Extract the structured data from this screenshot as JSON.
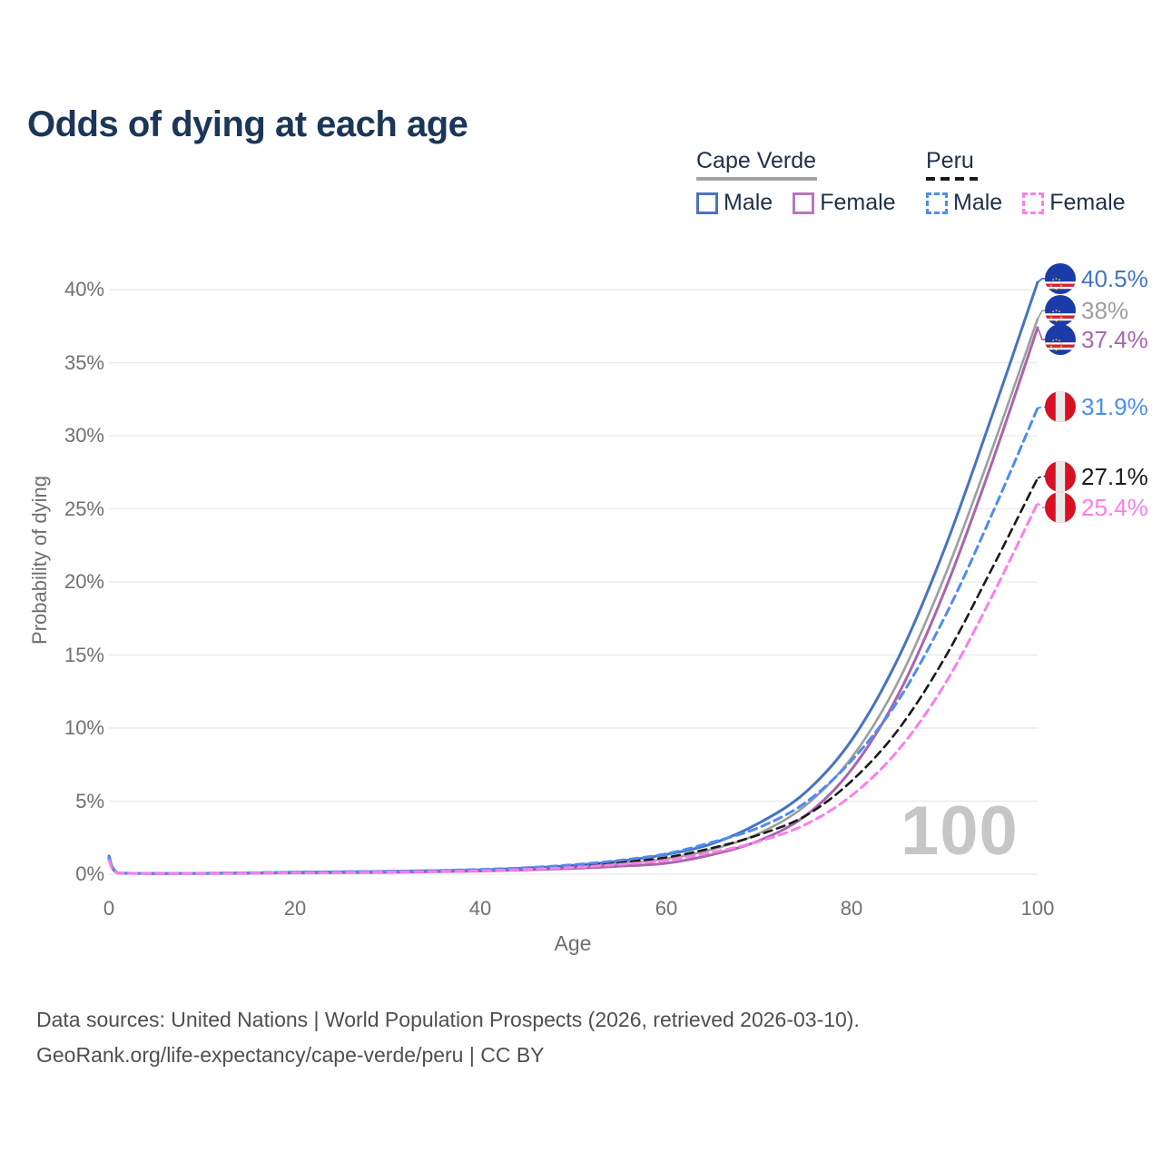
{
  "title": "Odds of dying at each age",
  "legend": {
    "groups": [
      {
        "name": "Cape Verde",
        "underline_style": "solid",
        "underline_color": "#a3a3a3",
        "items": [
          {
            "label": "Male",
            "color": "#4674c1",
            "line_style": "solid"
          },
          {
            "label": "Female",
            "color": "#bb74c0",
            "line_style": "solid"
          }
        ]
      },
      {
        "name": "Peru",
        "underline_style": "dashed",
        "underline_color": "#1a1a1a",
        "items": [
          {
            "label": "Male",
            "color": "#4e8cf0",
            "line_style": "dashed"
          },
          {
            "label": "Female",
            "color": "#fb7eeb",
            "line_style": "dashed"
          }
        ]
      }
    ]
  },
  "chart_data": {
    "type": "line",
    "title": "Odds of dying at each age",
    "xlabel": "Age",
    "ylabel": "Probability of dying",
    "x_ticks": [
      0,
      20,
      40,
      60,
      80,
      100
    ],
    "y_ticks": [
      {
        "value": 0,
        "label": "0%"
      },
      {
        "value": 5,
        "label": "5%"
      },
      {
        "value": 10,
        "label": "10%"
      },
      {
        "value": 15,
        "label": "15%"
      },
      {
        "value": 20,
        "label": "20%"
      },
      {
        "value": 25,
        "label": "25%"
      },
      {
        "value": 30,
        "label": "30%"
      },
      {
        "value": 35,
        "label": "35%"
      },
      {
        "value": 40,
        "label": "40%"
      }
    ],
    "xlim": [
      0,
      100
    ],
    "ylim_percent": [
      0,
      42
    ],
    "grid": true,
    "legend_position": "top-right",
    "ages": [
      0,
      1,
      5,
      10,
      15,
      20,
      25,
      30,
      35,
      40,
      45,
      50,
      55,
      60,
      65,
      70,
      75,
      80,
      85,
      90,
      95,
      100
    ],
    "series": [
      {
        "name": "Cape Verde Male",
        "country": "Cape Verde",
        "sex": "male",
        "color": "#4674c1",
        "dash": false,
        "flag": "cape-verde",
        "end_label": "40.5%",
        "end_value": 40.5,
        "values": [
          1.25,
          0.09,
          0.05,
          0.06,
          0.09,
          0.13,
          0.16,
          0.19,
          0.24,
          0.3,
          0.42,
          0.6,
          0.9,
          1.35,
          2.1,
          3.5,
          5.6,
          9.2,
          14.8,
          22.3,
          31.2,
          40.5
        ]
      },
      {
        "name": "Cape Verde Both sexes",
        "country": "Cape Verde",
        "sex": "both",
        "color": "#9e9e9e",
        "dash": false,
        "flag": "cape-verde",
        "end_label": "38%",
        "end_value": 38,
        "values": [
          1.15,
          0.08,
          0.05,
          0.06,
          0.08,
          0.11,
          0.13,
          0.16,
          0.2,
          0.26,
          0.36,
          0.5,
          0.73,
          1.05,
          1.7,
          2.8,
          4.7,
          8.0,
          13.2,
          20.4,
          28.9,
          38.0
        ]
      },
      {
        "name": "Cape Verde Female",
        "country": "Cape Verde",
        "sex": "female",
        "color": "#a965ae",
        "dash": false,
        "flag": "cape-verde",
        "end_label": "37.4%",
        "end_value": 37.4,
        "values": [
          1.05,
          0.07,
          0.04,
          0.05,
          0.07,
          0.09,
          0.11,
          0.13,
          0.17,
          0.22,
          0.3,
          0.4,
          0.55,
          0.75,
          1.35,
          2.3,
          4.0,
          7.2,
          12.3,
          19.4,
          28.0,
          37.4
        ]
      },
      {
        "name": "Peru Male",
        "country": "Peru",
        "sex": "male",
        "color": "#4e8cf0",
        "dash": true,
        "flag": "peru",
        "end_label": "31.9%",
        "end_value": 31.9,
        "values": [
          1.15,
          0.09,
          0.05,
          0.07,
          0.1,
          0.14,
          0.17,
          0.2,
          0.25,
          0.33,
          0.45,
          0.65,
          0.95,
          1.4,
          2.2,
          3.2,
          4.9,
          7.8,
          11.9,
          17.6,
          24.5,
          31.9
        ]
      },
      {
        "name": "Peru Both sexes",
        "country": "Peru",
        "sex": "both",
        "color": "#1a1a1a",
        "dash": true,
        "flag": "peru",
        "end_label": "27.1%",
        "end_value": 27.1,
        "values": [
          1.05,
          0.08,
          0.05,
          0.06,
          0.09,
          0.12,
          0.14,
          0.17,
          0.21,
          0.28,
          0.38,
          0.55,
          0.8,
          1.15,
          1.8,
          2.7,
          4.0,
          6.4,
          9.9,
          14.8,
          20.8,
          27.1
        ]
      },
      {
        "name": "Peru Female",
        "country": "Peru",
        "sex": "female",
        "color": "#fb7eeb",
        "dash": true,
        "flag": "peru",
        "end_label": "25.4%",
        "end_value": 25.4,
        "values": [
          0.95,
          0.07,
          0.04,
          0.05,
          0.08,
          0.1,
          0.12,
          0.15,
          0.19,
          0.24,
          0.33,
          0.47,
          0.68,
          0.95,
          1.5,
          2.25,
          3.4,
          5.4,
          8.5,
          13.0,
          18.9,
          25.4
        ]
      }
    ]
  },
  "watermark": "100",
  "footer": {
    "line1": "Data sources: United Nations | World Population Prospects (2026, retrieved 2026-03-10).",
    "line2": "GeoRank.org/life-expectancy/cape-verde/peru | CC BY"
  }
}
